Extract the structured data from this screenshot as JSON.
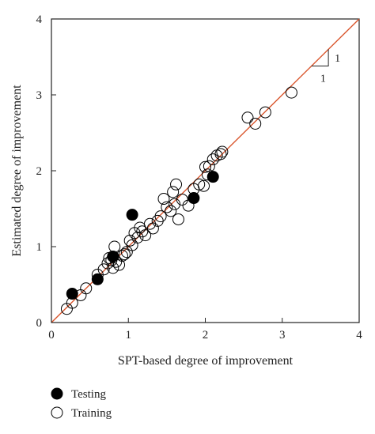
{
  "chart_data": {
    "type": "scatter",
    "title": "",
    "xlabel": "SPT-based degree of improvement",
    "ylabel": "Estimated degree of improvement",
    "xlim": [
      0,
      4
    ],
    "ylim": [
      0,
      4
    ],
    "xticks": [
      "0",
      "1",
      "2",
      "3",
      "4"
    ],
    "yticks": [
      "0",
      "1",
      "2",
      "3",
      "4"
    ],
    "grid": false,
    "legend_position": "below-left",
    "reference_line": {
      "label": "1:1 line",
      "x": [
        0,
        4
      ],
      "y": [
        0,
        4
      ],
      "color": "#d9542b"
    },
    "slope_annotation": {
      "rise_label": "1",
      "run_label": "1"
    },
    "series": [
      {
        "name": "Testing",
        "marker": "filled-circle",
        "color": "#000000",
        "x": [
          0.27,
          0.6,
          0.8,
          1.05,
          1.85,
          2.1
        ],
        "y": [
          0.38,
          0.57,
          0.87,
          1.42,
          1.64,
          1.92
        ]
      },
      {
        "name": "Training",
        "marker": "open-circle",
        "color": "#000000",
        "x": [
          0.2,
          0.27,
          0.38,
          0.45,
          0.6,
          0.68,
          0.73,
          0.75,
          0.78,
          0.8,
          0.82,
          0.84,
          0.88,
          0.92,
          0.95,
          0.98,
          1.02,
          1.05,
          1.08,
          1.12,
          1.15,
          1.18,
          1.22,
          1.28,
          1.32,
          1.38,
          1.42,
          1.46,
          1.5,
          1.55,
          1.6,
          1.58,
          1.62,
          1.65,
          1.7,
          1.78,
          1.85,
          1.92,
          1.98,
          2.0,
          2.03,
          2.05,
          2.1,
          2.15,
          2.2,
          2.22,
          2.55,
          2.65,
          2.78,
          3.12
        ],
        "y": [
          0.18,
          0.26,
          0.36,
          0.45,
          0.63,
          0.7,
          0.78,
          0.85,
          0.82,
          0.72,
          1.0,
          0.8,
          0.76,
          0.88,
          0.9,
          0.93,
          1.08,
          1.02,
          1.18,
          1.12,
          1.25,
          1.2,
          1.15,
          1.3,
          1.24,
          1.34,
          1.4,
          1.63,
          1.52,
          1.47,
          1.56,
          1.72,
          1.82,
          1.36,
          1.62,
          1.54,
          1.76,
          1.82,
          1.8,
          2.05,
          1.95,
          2.06,
          2.15,
          2.2,
          2.22,
          2.25,
          2.7,
          2.62,
          2.77,
          3.03
        ]
      }
    ]
  }
}
